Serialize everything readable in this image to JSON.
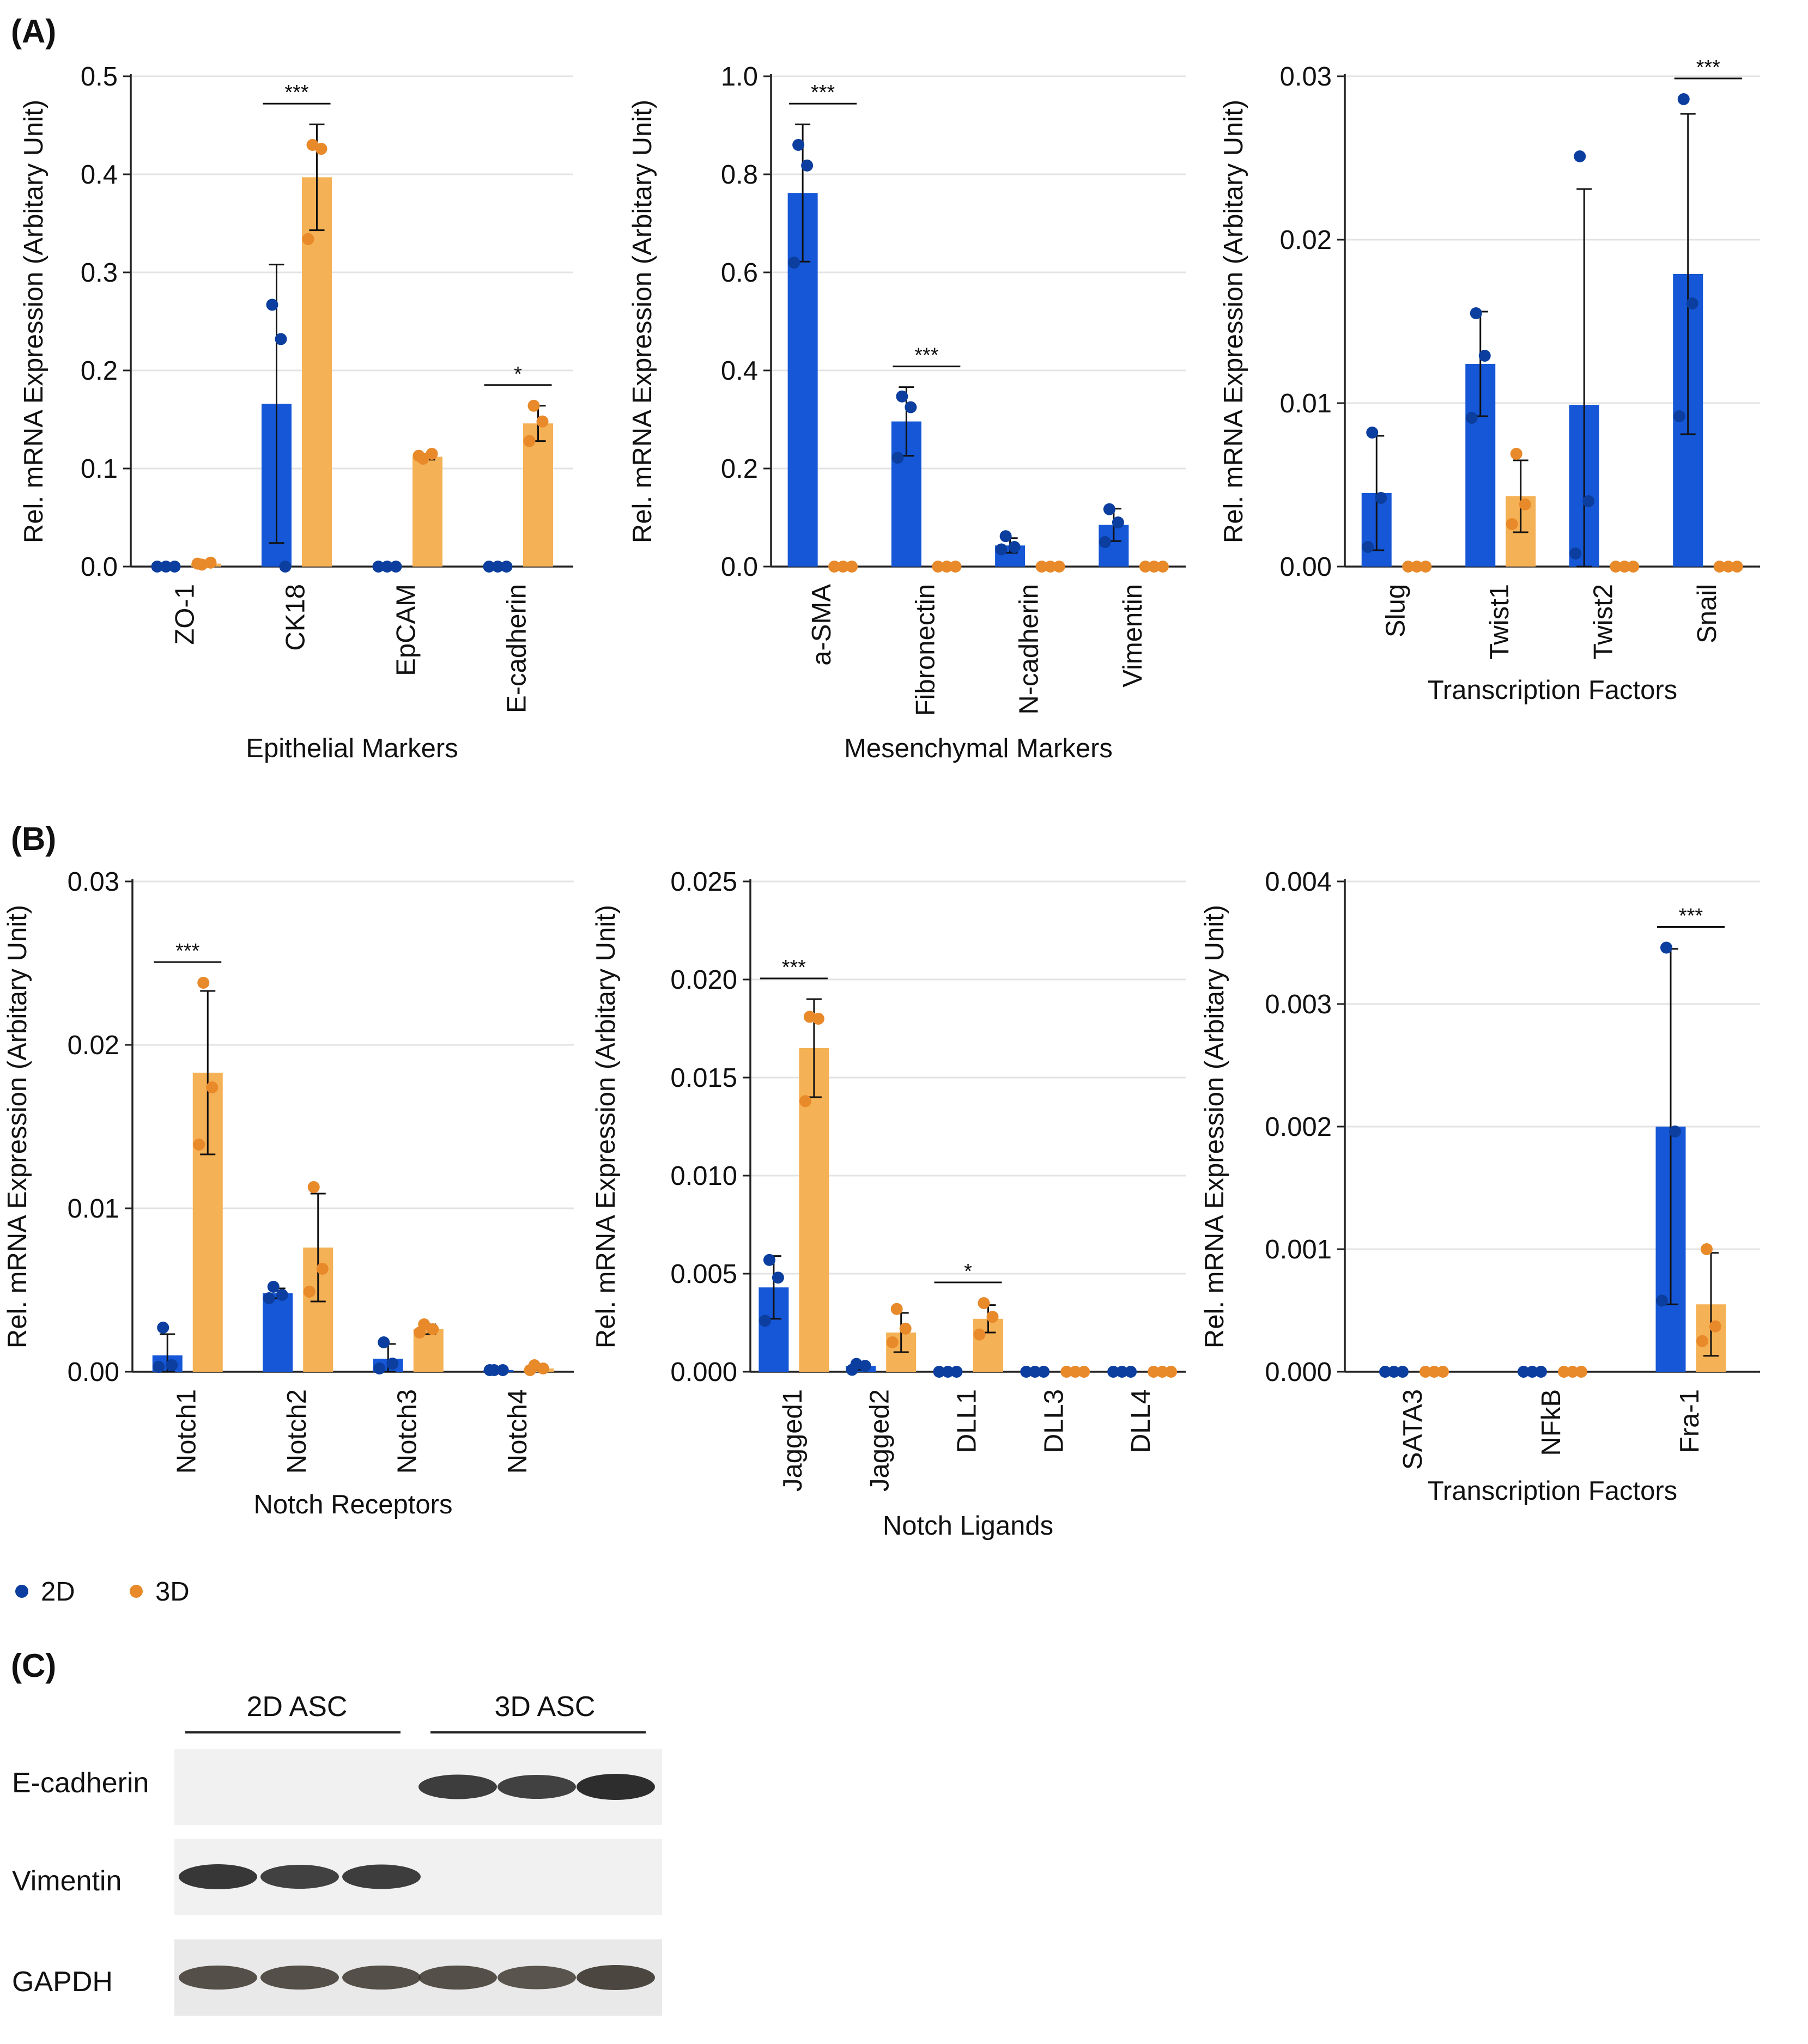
{
  "figure": {
    "panel_labels": [
      "(A)",
      "(B)",
      "(C)"
    ],
    "colors": {
      "2D_bar": "#1557d6",
      "2D_dot": "#0b3e9e",
      "3D_bar": "#f5b155",
      "3D_dot": "#e8892a",
      "axis": "#222222",
      "grid": "#e3e3e3"
    }
  },
  "legend": {
    "items": [
      {
        "label": "2D",
        "color": "#0b3e9e"
      },
      {
        "label": "3D",
        "color": "#e8892a"
      }
    ]
  },
  "chart_data": [
    {
      "id": "A1",
      "type": "bar",
      "panel": "(A)",
      "ylabel": "Rel. mRNA Expression (Arbitary Unit)",
      "xlabel": "Epithelial Markers",
      "ylim": [
        0,
        0.5
      ],
      "yticks": [
        0.0,
        0.1,
        0.2,
        0.3,
        0.4,
        0.5
      ],
      "decimals": 1,
      "grid": true,
      "categories": [
        "ZO-1",
        "CK18",
        "EpCAM",
        "E-cadherin"
      ],
      "series": [
        {
          "name": "2D",
          "values": [
            0.0,
            0.166,
            0.0,
            0.0
          ],
          "err": [
            0.0,
            0.142,
            0.0,
            0.0
          ],
          "points": [
            [
              0.0,
              0.0,
              0.0
            ],
            [
              0.267,
              0.232,
              0.0
            ],
            [
              0.0,
              0.0,
              0.0
            ],
            [
              0.0,
              0.0,
              0.0
            ]
          ]
        },
        {
          "name": "3D",
          "values": [
            0.003,
            0.397,
            0.112,
            0.146
          ],
          "err": [
            0.002,
            0.054,
            0.003,
            0.018
          ],
          "points": [
            [
              0.002,
              0.004,
              0.003
            ],
            [
              0.43,
              0.426,
              0.334
            ],
            [
              0.11,
              0.115,
              0.113
            ],
            [
              0.164,
              0.148,
              0.128
            ]
          ]
        }
      ],
      "significance": [
        {
          "category": "CK18",
          "label": "***"
        },
        {
          "category": "E-cadherin",
          "label": "*"
        }
      ]
    },
    {
      "id": "A2",
      "type": "bar",
      "panel": "(A)",
      "ylabel": "Rel. mRNA Expression (Arbitary Unit)",
      "xlabel": "Mesenchymal Markers",
      "ylim": [
        0,
        1.0
      ],
      "yticks": [
        0.0,
        0.2,
        0.4,
        0.6,
        0.8,
        1.0
      ],
      "decimals": 1,
      "grid": true,
      "categories": [
        "a-SMA",
        "Fibronectin",
        "N-cadherin",
        "Vimentin"
      ],
      "series": [
        {
          "name": "2D",
          "values": [
            0.762,
            0.296,
            0.043,
            0.085
          ],
          "err": [
            0.14,
            0.07,
            0.015,
            0.033
          ],
          "points": [
            [
              0.86,
              0.818,
              0.62
            ],
            [
              0.347,
              0.325,
              0.222
            ],
            [
              0.062,
              0.04,
              0.035
            ],
            [
              0.117,
              0.09,
              0.05
            ]
          ]
        },
        {
          "name": "3D",
          "values": [
            0.0,
            0.0,
            0.0,
            0.0
          ],
          "err": [
            0.0,
            0.0,
            0.0,
            0.0
          ],
          "points": [
            [
              0.0,
              0.0,
              0.0
            ],
            [
              0.0,
              0.0,
              0.0
            ],
            [
              0.0,
              0.0,
              0.0
            ],
            [
              0.0,
              0.0,
              0.0
            ]
          ]
        }
      ],
      "significance": [
        {
          "category": "a-SMA",
          "label": "***"
        },
        {
          "category": "Fibronectin",
          "label": "***"
        }
      ]
    },
    {
      "id": "A3",
      "type": "bar",
      "panel": "(A)",
      "ylabel": "Rel. mRNA Expression (Arbitary Unit)",
      "xlabel": "Transcription Factors",
      "ylim": [
        0,
        0.03
      ],
      "yticks": [
        0.0,
        0.01,
        0.02,
        0.03
      ],
      "tick_labels": [
        "0.00",
        "0.01",
        "0.02",
        "0.03"
      ],
      "grid": true,
      "categories": [
        "Slug",
        "Twist1",
        "Twist2",
        "Snail"
      ],
      "series": [
        {
          "name": "2D",
          "values": [
            0.0045,
            0.0124,
            0.0099,
            0.0179
          ],
          "err": [
            0.0035,
            0.0032,
            0.0132,
            0.0098
          ],
          "points": [
            [
              0.0082,
              0.0042,
              0.0012
            ],
            [
              0.0155,
              0.0129,
              0.0091
            ],
            [
              0.0251,
              0.004,
              0.0008
            ],
            [
              0.0286,
              0.0161,
              0.0092
            ]
          ]
        },
        {
          "name": "3D",
          "values": [
            0.0,
            0.0043,
            0.0,
            0.0
          ],
          "err": [
            0.0,
            0.0022,
            0.0,
            0.0
          ],
          "points": [
            [
              0.0,
              0.0,
              0.0
            ],
            [
              0.0069,
              0.0038,
              0.0026
            ],
            [
              0.0,
              0.0,
              0.0
            ],
            [
              0.0,
              0.0,
              0.0
            ]
          ]
        }
      ],
      "significance": [
        {
          "category": "Snail",
          "label": "***"
        }
      ]
    },
    {
      "id": "B1",
      "type": "bar",
      "panel": "(B)",
      "ylabel": "Rel. mRNA Expression (Arbitary Unit)",
      "xlabel": "Notch Receptors",
      "ylim": [
        0,
        0.03
      ],
      "yticks": [
        0.0,
        0.01,
        0.02,
        0.03
      ],
      "tick_labels": [
        "0.00",
        "0.01",
        "0.02",
        "0.03"
      ],
      "grid": true,
      "categories": [
        "Notch1",
        "Notch2",
        "Notch3",
        "Notch4"
      ],
      "series": [
        {
          "name": "2D",
          "values": [
            0.001,
            0.0048,
            0.0008,
            0.0001
          ],
          "err": [
            0.0013,
            0.0003,
            0.0009,
            0.0001
          ],
          "points": [
            [
              0.0027,
              0.0004,
              0.0003
            ],
            [
              0.0052,
              0.0047,
              0.0045
            ],
            [
              0.0018,
              0.0005,
              0.0002
            ],
            [
              0.0001,
              0.0001,
              0.0001
            ]
          ]
        },
        {
          "name": "3D",
          "values": [
            0.0183,
            0.0076,
            0.0026,
            0.0002
          ],
          "err": [
            0.005,
            0.0033,
            0.0003,
            0.0001
          ],
          "points": [
            [
              0.0238,
              0.0174,
              0.0139
            ],
            [
              0.0113,
              0.0063,
              0.0049
            ],
            [
              0.0029,
              0.0026,
              0.0024
            ],
            [
              0.0004,
              0.0002,
              0.0001
            ]
          ]
        }
      ],
      "significance": [
        {
          "category": "Notch1",
          "label": "***"
        }
      ]
    },
    {
      "id": "B2",
      "type": "bar",
      "panel": "(B)",
      "ylabel": "Rel. mRNA Expression (Arbitary Unit)",
      "xlabel": "Notch Ligands",
      "ylim": [
        0,
        0.025
      ],
      "yticks": [
        0.0,
        0.005,
        0.01,
        0.015,
        0.02,
        0.025
      ],
      "tick_labels": [
        "0.000",
        "0.005",
        "0.010",
        "0.015",
        "0.020",
        "0.025"
      ],
      "grid": true,
      "categories": [
        "Jagged1",
        "Jagged2",
        "DLL1",
        "DLL3",
        "DLL4"
      ],
      "series": [
        {
          "name": "2D",
          "values": [
            0.0043,
            0.0003,
            0.0,
            0.0,
            0.0
          ],
          "err": [
            0.0016,
            0.0002,
            0.0,
            0.0,
            0.0
          ],
          "points": [
            [
              0.0057,
              0.0048,
              0.0026
            ],
            [
              0.0004,
              0.0003,
              0.0001
            ],
            [
              0.0,
              0.0,
              0.0
            ],
            [
              0.0,
              0.0,
              0.0
            ],
            [
              0.0,
              0.0,
              0.0
            ]
          ]
        },
        {
          "name": "3D",
          "values": [
            0.0165,
            0.002,
            0.0027,
            0.0,
            0.0
          ],
          "err": [
            0.0025,
            0.001,
            0.0007,
            0.0,
            0.0
          ],
          "points": [
            [
              0.0181,
              0.018,
              0.0138
            ],
            [
              0.0032,
              0.0022,
              0.0015
            ],
            [
              0.0035,
              0.0028,
              0.0019
            ],
            [
              0.0,
              0.0,
              0.0
            ],
            [
              0.0,
              0.0,
              0.0
            ]
          ]
        }
      ],
      "significance": [
        {
          "category": "Jagged1",
          "label": "***"
        },
        {
          "category": "DLL1",
          "label": "*"
        }
      ]
    },
    {
      "id": "B3",
      "type": "bar",
      "panel": "(B)",
      "ylabel": "Rel. mRNA Expression (Arbitary Unit)",
      "xlabel": "Transcription Factors",
      "ylim": [
        0,
        0.004
      ],
      "yticks": [
        0.0,
        0.001,
        0.002,
        0.003,
        0.004
      ],
      "tick_labels": [
        "0.000",
        "0.001",
        "0.002",
        "0.003",
        "0.004"
      ],
      "grid": true,
      "categories": [
        "SATA3",
        "NFkB",
        "Fra-1"
      ],
      "series": [
        {
          "name": "2D",
          "values": [
            0.0,
            0.0,
            0.002
          ],
          "err": [
            0.0,
            0.0,
            0.00145
          ],
          "points": [
            [
              0.0,
              0.0,
              0.0
            ],
            [
              0.0,
              0.0,
              0.0
            ],
            [
              0.00346,
              0.00196,
              0.00058
            ]
          ]
        },
        {
          "name": "3D",
          "values": [
            0.0,
            0.0,
            0.00055
          ],
          "err": [
            0.0,
            0.0,
            0.00042
          ],
          "points": [
            [
              0.0,
              0.0,
              0.0
            ],
            [
              0.0,
              0.0,
              0.0
            ],
            [
              0.001,
              0.00037,
              0.00025
            ]
          ]
        }
      ],
      "significance": [
        {
          "category": "Fra-1",
          "label": "***"
        }
      ]
    }
  ],
  "western_blot": {
    "groups": [
      "2D ASC",
      "3D ASC"
    ],
    "rows": [
      {
        "label": "E-cadherin",
        "bands": [
          0.0,
          0.0,
          0.0,
          0.85,
          0.8,
          1.0
        ]
      },
      {
        "label": "Vimentin",
        "bands": [
          0.9,
          0.8,
          0.85,
          0.0,
          0.0,
          0.0
        ]
      },
      {
        "label": "GAPDH",
        "bands": [
          0.8,
          0.8,
          0.8,
          0.8,
          0.75,
          0.9
        ]
      }
    ]
  }
}
